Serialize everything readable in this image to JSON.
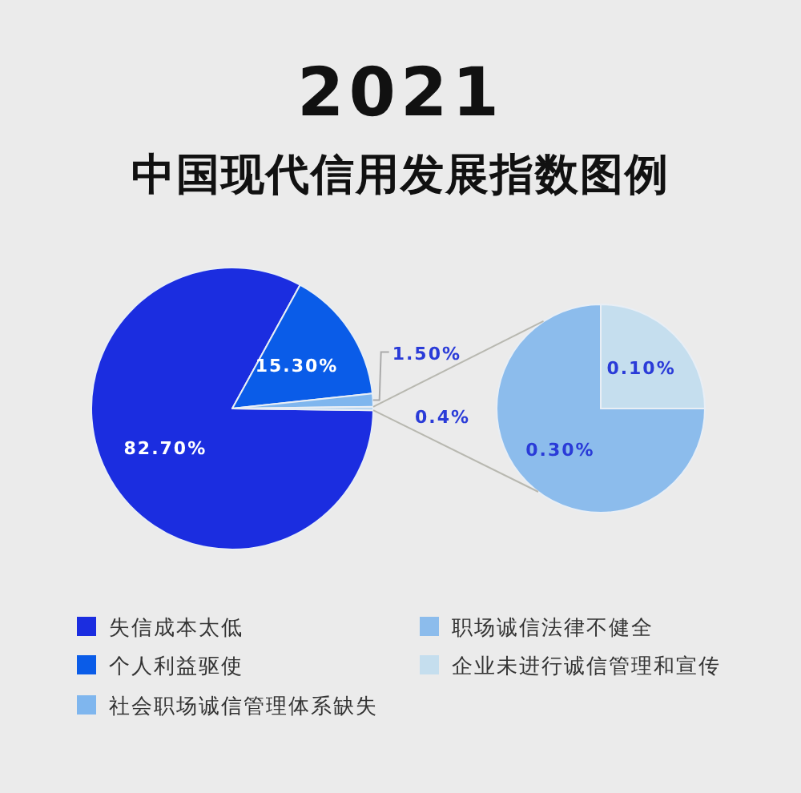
{
  "chart_data": [
    {
      "type": "pie",
      "title": "2021",
      "subtitle": "中国现代信用发展指数图例",
      "legend": "bottom",
      "categories": [
        "失信成本太低",
        "个人利益驱使",
        "社会职场诚信管理体系缺失",
        null
      ],
      "values": [
        82.7,
        15.3,
        1.5,
        0.4
      ],
      "colors": [
        "#1b2de0",
        "#0a5ce8",
        "#7fb6ee",
        "#b9d6f0"
      ],
      "value_labels": [
        "82.70%",
        "15.30%",
        "1.50%",
        "0.4%"
      ]
    },
    {
      "type": "pie",
      "legend": "bottom",
      "categories": [
        "职场诚信法律不健全",
        "企业未进行诚信管理和宣传"
      ],
      "values": [
        0.3,
        0.1
      ],
      "colors": [
        "#8cbcec",
        "#c5deee"
      ],
      "value_labels": [
        "0.30%",
        "0.10%"
      ]
    }
  ]
}
